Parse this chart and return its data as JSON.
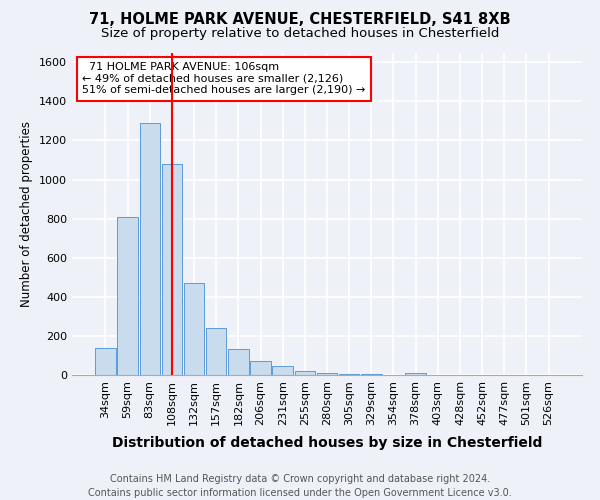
{
  "title": "71, HOLME PARK AVENUE, CHESTERFIELD, S41 8XB",
  "subtitle": "Size of property relative to detached houses in Chesterfield",
  "xlabel": "Distribution of detached houses by size in Chesterfield",
  "ylabel": "Number of detached properties",
  "categories": [
    "34sqm",
    "59sqm",
    "83sqm",
    "108sqm",
    "132sqm",
    "157sqm",
    "182sqm",
    "206sqm",
    "231sqm",
    "255sqm",
    "280sqm",
    "305sqm",
    "329sqm",
    "354sqm",
    "378sqm",
    "403sqm",
    "428sqm",
    "452sqm",
    "477sqm",
    "501sqm",
    "526sqm"
  ],
  "values": [
    140,
    810,
    1290,
    1080,
    470,
    240,
    135,
    70,
    45,
    20,
    12,
    5,
    3,
    2,
    10,
    2,
    1,
    0,
    0,
    0,
    0
  ],
  "bar_color": "#c8dced",
  "bar_edge_color": "#5b9bd5",
  "vline_x_index": 3,
  "vline_color": "red",
  "annotation_text": "  71 HOLME PARK AVENUE: 106sqm\n← 49% of detached houses are smaller (2,126)\n51% of semi-detached houses are larger (2,190) →",
  "annotation_box_color": "white",
  "annotation_box_edge_color": "red",
  "ylim": [
    0,
    1650
  ],
  "yticks": [
    0,
    200,
    400,
    600,
    800,
    1000,
    1200,
    1400,
    1600
  ],
  "footer": "Contains HM Land Registry data © Crown copyright and database right 2024.\nContains public sector information licensed under the Open Government Licence v3.0.",
  "background_color": "#eef2f8",
  "grid_color": "white",
  "title_fontsize": 10.5,
  "subtitle_fontsize": 9.5,
  "xlabel_fontsize": 10,
  "ylabel_fontsize": 8.5,
  "footer_fontsize": 7,
  "tick_fontsize": 8,
  "annotation_fontsize": 8
}
